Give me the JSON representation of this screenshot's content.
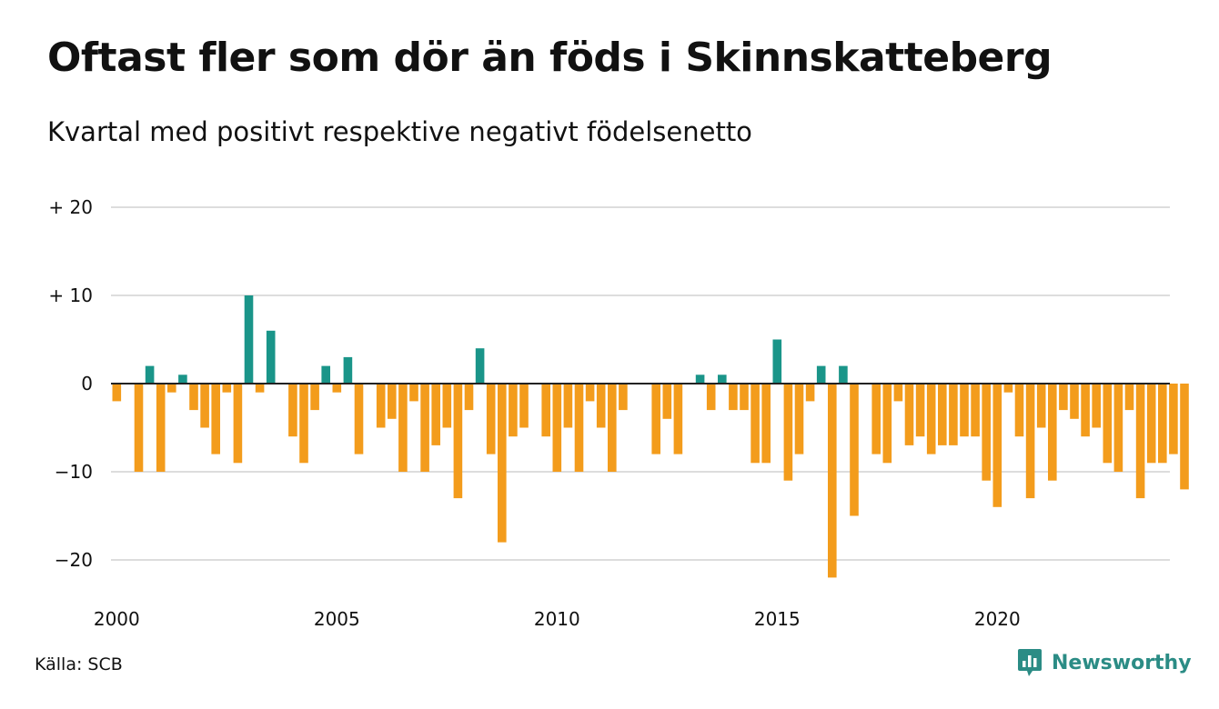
{
  "header": {
    "title": "Oftast fler som dör än föds i Skinnskatteberg",
    "subtitle": "Kvartal med positivt respektive negativt födelsenetto"
  },
  "footer": {
    "source": "Källa: SCB",
    "brand": "Newsworthy",
    "brand_icon": "bar-chart-logo-icon"
  },
  "colors": {
    "positive": "#1a9589",
    "negative": "#f39c1c",
    "grid": "#dddddd",
    "zero_line": "#222222",
    "brand": "#2b8c85"
  },
  "chart_data": {
    "type": "bar",
    "title": "Oftast fler som dör än föds i Skinnskatteberg",
    "subtitle": "Kvartal med positivt respektive negativt födelsenetto",
    "xlabel": "",
    "ylabel": "",
    "x_start": "2000 Q1",
    "ylim": [
      -24,
      20
    ],
    "y_ticks": [
      {
        "value": 20,
        "label": "+ 20"
      },
      {
        "value": 10,
        "label": "+ 10"
      },
      {
        "value": 0,
        "label": "0"
      },
      {
        "value": -10,
        "label": "−10"
      },
      {
        "value": -20,
        "label": "−20"
      }
    ],
    "x_ticks": [
      "2000",
      "2005",
      "2010",
      "2015",
      "2020"
    ],
    "grid": true,
    "values": [
      -2,
      0,
      -10,
      2,
      -10,
      -1,
      1,
      -3,
      -5,
      -8,
      -1,
      -9,
      10,
      -1,
      6,
      0,
      -6,
      -9,
      -3,
      2,
      -1,
      3,
      -8,
      0,
      -5,
      -4,
      -10,
      -2,
      -10,
      -7,
      -5,
      -13,
      -3,
      4,
      -8,
      -18,
      -6,
      -5,
      0,
      -6,
      -10,
      -5,
      -10,
      -2,
      -5,
      -10,
      -3,
      0,
      0,
      -8,
      -4,
      -8,
      0,
      1,
      -3,
      1,
      -3,
      -3,
      -9,
      -9,
      5,
      -11,
      -8,
      -2,
      2,
      -22,
      2,
      -15,
      0,
      -8,
      -9,
      -2,
      -7,
      -6,
      -8,
      -7,
      -7,
      -6,
      -6,
      -11,
      -14,
      -1,
      -6,
      -13,
      -5,
      -11,
      -3,
      -4,
      -6,
      -5,
      -9,
      -10,
      -3,
      -13,
      -9,
      -9,
      -8,
      -12
    ]
  }
}
